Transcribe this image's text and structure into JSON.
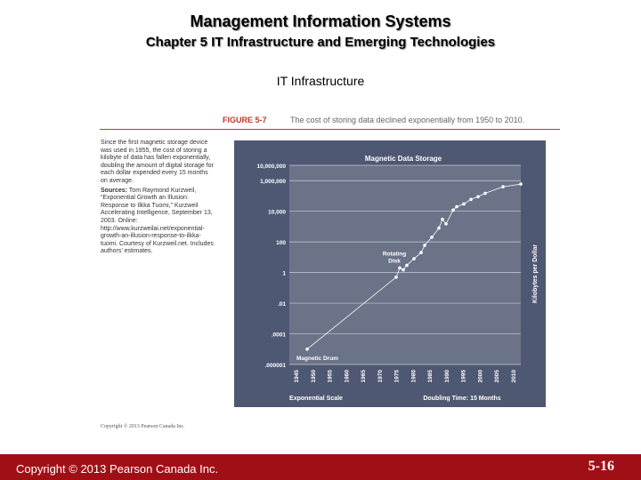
{
  "header": {
    "title": "Management Information Systems",
    "subtitle": "Chapter 5 IT Infrastructure and Emerging Technologies",
    "section": "IT Infrastructure"
  },
  "figure": {
    "label": "FIGURE 5-7",
    "caption": "The cost of storing data declined exponentially from 1950 to 2010.",
    "sidebar_text": "Since the first magnetic storage device was used in 1955, the cost of storing a kilobyte of data has fallen exponentially, doubling the amount of digital storage for each dollar expended every 15 months on average.",
    "source_label": "Sources:",
    "source_text": "Tom Raymond Kurzweil, “Exponential Growth an Illusion: Response to Ilkka Tuomi,” Kurzweil Accelerating Intelligence, September 13, 2003. Online: http://www.kurzweilai.net/exponential-growth-an-illusion-response-to-ilkka-tuomi. Courtesy of Kurzweil.net. Includes authors’ estimates.",
    "copyright_small": "Copyright © 2013 Pearson Canada Inc."
  },
  "chart_data": {
    "type": "scatter",
    "title": "Magnetic Data Storage",
    "xlabel": "Exponential Scale",
    "ylabel": "Kilobytes per Dollar",
    "note": "Doubling Time: 15 Months",
    "yscale": "log",
    "ylim": [
      1e-06,
      10000000
    ],
    "xlim": [
      1945,
      2010
    ],
    "y_ticks": [
      {
        "value": 10000000,
        "label": "10,000,000"
      },
      {
        "value": 1000000,
        "label": "1,000,000"
      },
      {
        "value": 10000,
        "label": "10,000"
      },
      {
        "value": 100,
        "label": "100"
      },
      {
        "value": 1,
        "label": "1"
      },
      {
        "value": 0.01,
        "label": ".01"
      },
      {
        "value": 0.0001,
        "label": ".0001"
      },
      {
        "value": 1e-06,
        "label": ".000001"
      }
    ],
    "x_ticks": [
      "1945",
      "1950",
      "1955",
      "1960",
      "1965",
      "1970",
      "1975",
      "1980",
      "1985",
      "1990",
      "1995",
      "2000",
      "2005",
      "2010"
    ],
    "annotations": [
      {
        "text": "Magnetic Drum",
        "x": 1950,
        "y": 1e-05
      },
      {
        "text": "Rotating Disk",
        "x": 1976,
        "y": 2
      }
    ],
    "series": [
      {
        "name": "Magnetic Data Storage",
        "x": [
          1950,
          1975,
          1976,
          1977,
          1978,
          1980,
          1982,
          1983,
          1985,
          1987,
          1988,
          1989,
          1991,
          1992,
          1994,
          1996,
          1998,
          2000,
          2005,
          2010
        ],
        "y": [
          1e-05,
          0.5,
          2,
          1.5,
          3,
          8,
          20,
          60,
          200,
          800,
          3000,
          1500,
          12000,
          20000,
          30000,
          60000,
          90000,
          150000,
          400000,
          600000
        ]
      }
    ]
  },
  "footer": {
    "copyright": "Copyright © 2013 Pearson Canada Inc.",
    "page": "5-16"
  }
}
